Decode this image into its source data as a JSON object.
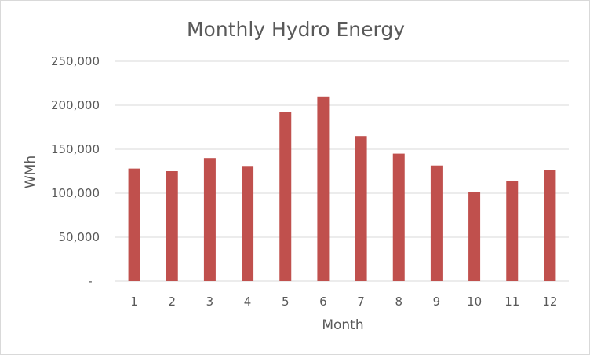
{
  "chart_data": {
    "type": "bar",
    "title": "Monthly Hydro Energy",
    "xlabel": "Month",
    "ylabel": "WMh",
    "categories": [
      "1",
      "2",
      "3",
      "4",
      "5",
      "6",
      "7",
      "8",
      "9",
      "10",
      "11",
      "12"
    ],
    "values": [
      128000,
      125000,
      140000,
      131000,
      192000,
      210000,
      165000,
      145000,
      131500,
      101000,
      114000,
      126000
    ],
    "ylim": [
      0,
      250000
    ],
    "yticks": [
      0,
      50000,
      100000,
      150000,
      200000,
      250000
    ],
    "ytick_labels": [
      "-",
      "50,000",
      "100,000",
      "150,000",
      "200,000",
      "250,000"
    ],
    "grid": true,
    "legend": "none",
    "colors": {
      "bar": "#c0504d",
      "grid": "#d9d9d9",
      "axis_line": "#d9d9d9",
      "text": "#595959"
    }
  }
}
